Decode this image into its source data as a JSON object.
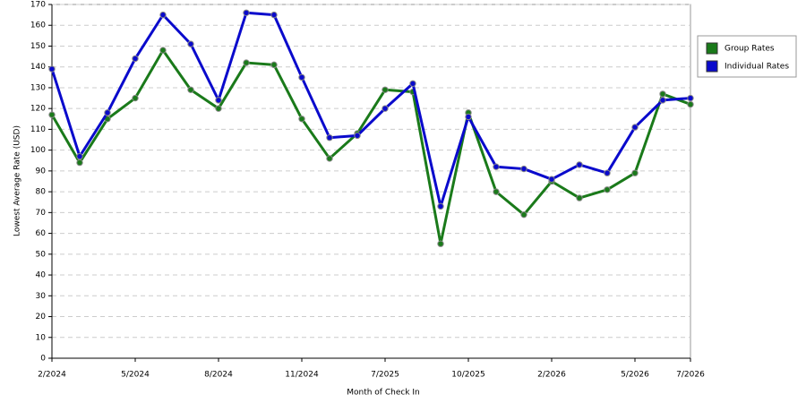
{
  "chart_data": {
    "type": "line",
    "x_label": "Month of Check In",
    "y_label": "Lowest Average Rate (USD)",
    "categories": [
      "2/2024",
      null,
      null,
      "5/2024",
      null,
      null,
      "8/2024",
      null,
      null,
      "11/2024",
      null,
      null,
      "7/2025",
      null,
      null,
      "10/2025",
      null,
      null,
      "2/2026",
      null,
      null,
      "5/2026",
      null,
      "7/2026"
    ],
    "series": [
      {
        "name": "Group Rates",
        "color": "#1a7a1a",
        "values": [
          117,
          94,
          115,
          125,
          148,
          129,
          120,
          142,
          141,
          115,
          96,
          108,
          129,
          128,
          55,
          118,
          80,
          69,
          85,
          77,
          81,
          89,
          127,
          122
        ]
      },
      {
        "name": "Individual Rates",
        "color": "#0a0acc",
        "values": [
          139,
          97,
          118,
          144,
          165,
          151,
          124,
          166,
          165,
          135,
          106,
          107,
          120,
          132,
          73,
          116,
          92,
          91,
          86,
          93,
          89,
          111,
          124,
          125
        ]
      }
    ],
    "ylim": [
      0,
      170
    ],
    "yticks": [
      0,
      10,
      20,
      30,
      40,
      50,
      60,
      70,
      80,
      90,
      100,
      110,
      120,
      130,
      140,
      150,
      160,
      170
    ],
    "grid": true,
    "legend": "right"
  }
}
